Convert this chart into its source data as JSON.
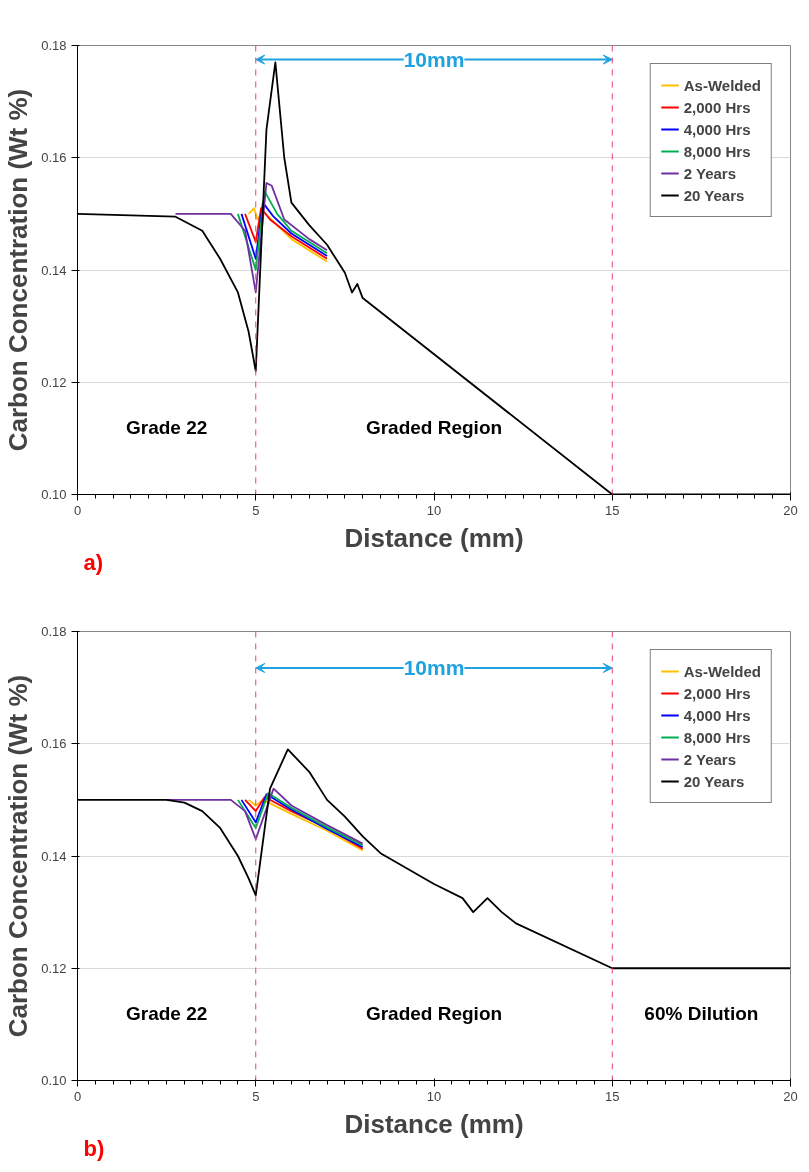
{
  "chart_data": [
    {
      "type": "line",
      "xlabel": "Distance (mm)",
      "ylabel": "Carbon Concentration (Wt %)",
      "xlim": [
        0,
        20
      ],
      "ylim": [
        0.1,
        0.18
      ],
      "xticks": [
        0,
        5,
        10,
        15,
        20
      ],
      "yticks": [
        {
          "value": 0.1,
          "label": "0.10"
        },
        {
          "value": 0.12,
          "label": "0.12"
        },
        {
          "value": 0.14,
          "label": "0.14"
        },
        {
          "value": 0.16,
          "label": "0.16"
        },
        {
          "value": 0.18,
          "label": "0.18"
        }
      ],
      "grid": "y",
      "legend": "top right",
      "marker": "none",
      "line_style": "solid",
      "ref_lines": [
        {
          "axis": "x",
          "value": 5,
          "color": "#e8436a",
          "line_style": "dashed"
        },
        {
          "axis": "x",
          "value": 15,
          "color": "#e8436a",
          "line_style": "dashed"
        }
      ],
      "annotations": [
        {
          "text": "10mm",
          "x": 5,
          "y": 0.1775
        },
        "Grade 22",
        "Graded Region",
        "a)"
      ],
      "series": [
        {
          "name": "As-Welded",
          "color": "#ffc000",
          "x": [
            4.8,
            4.95,
            5.05,
            5.2,
            6,
            7
          ],
          "values": [
            0.15,
            0.151,
            0.149,
            0.1505,
            0.1455,
            0.1415
          ]
        },
        {
          "name": "2,000 Hrs",
          "color": "#ff0000",
          "x": [
            4.7,
            5,
            5.15,
            5.4,
            6,
            7
          ],
          "values": [
            0.15,
            0.145,
            0.151,
            0.149,
            0.146,
            0.142
          ]
        },
        {
          "name": "4,000 Hrs",
          "color": "#0000ff",
          "x": [
            4.6,
            5,
            5.2,
            5.5,
            6,
            7
          ],
          "values": [
            0.15,
            0.142,
            0.152,
            0.1495,
            0.1465,
            0.1425
          ]
        },
        {
          "name": "8,000 Hrs",
          "color": "#00b050",
          "x": [
            4.5,
            5,
            5.25,
            5.6,
            6,
            7
          ],
          "values": [
            0.15,
            0.14,
            0.154,
            0.15,
            0.147,
            0.143
          ]
        },
        {
          "name": "2 Years",
          "color": "#7030a0",
          "x": [
            2.75,
            4.3,
            4.7,
            5,
            5.3,
            5.45,
            5.8,
            6.5,
            7
          ],
          "values": [
            0.15,
            0.15,
            0.147,
            0.136,
            0.1555,
            0.155,
            0.149,
            0.1455,
            0.1435
          ]
        },
        {
          "name": "20 Years",
          "color": "#000000",
          "x": [
            0,
            2.75,
            3.5,
            4,
            4.5,
            4.8,
            5,
            5.3,
            5.55,
            5.8,
            6,
            6.5,
            7,
            7.5,
            7.7,
            7.85,
            8,
            15,
            20
          ],
          "values": [
            0.15,
            0.1495,
            0.147,
            0.142,
            0.136,
            0.129,
            0.122,
            0.165,
            0.177,
            0.16,
            0.152,
            0.148,
            0.1445,
            0.1395,
            0.136,
            0.1375,
            0.135,
            0.1,
            0.1
          ]
        }
      ]
    },
    {
      "type": "line",
      "xlabel": "Distance (mm)",
      "ylabel": "Carbon Concentration (Wt %)",
      "xlim": [
        0,
        20
      ],
      "ylim": [
        0.1,
        0.18
      ],
      "xticks": [
        0,
        5,
        10,
        15,
        20
      ],
      "yticks": [
        {
          "value": 0.1,
          "label": "0.10"
        },
        {
          "value": 0.12,
          "label": "0.12"
        },
        {
          "value": 0.14,
          "label": "0.14"
        },
        {
          "value": 0.16,
          "label": "0.16"
        },
        {
          "value": 0.18,
          "label": "0.18"
        }
      ],
      "grid": "y",
      "legend": "top right",
      "marker": "none",
      "line_style": "solid",
      "ref_lines": [
        {
          "axis": "x",
          "value": 5,
          "color": "#e8436a",
          "line_style": "dashed"
        },
        {
          "axis": "x",
          "value": 15,
          "color": "#e8436a",
          "line_style": "dashed"
        }
      ],
      "annotations": [
        {
          "text": "10mm",
          "x": 5,
          "y": 0.1735
        },
        "Grade 22",
        "Graded Region",
        "60% Dilution",
        "b)"
      ],
      "series": [
        {
          "name": "As-Welded",
          "color": "#ffc000",
          "x": [
            4.8,
            5,
            5.2,
            6,
            7,
            8
          ],
          "values": [
            0.15,
            0.149,
            0.15,
            0.1475,
            0.1445,
            0.141
          ]
        },
        {
          "name": "2,000 Hrs",
          "color": "#ff0000",
          "x": [
            4.7,
            5,
            5.25,
            6,
            7,
            8
          ],
          "values": [
            0.15,
            0.148,
            0.1505,
            0.148,
            0.145,
            0.1413
          ]
        },
        {
          "name": "4,000 Hrs",
          "color": "#0000ff",
          "x": [
            4.6,
            5,
            5.3,
            6,
            7,
            8
          ],
          "values": [
            0.15,
            0.146,
            0.151,
            0.1483,
            0.1448,
            0.1416
          ]
        },
        {
          "name": "8,000 Hrs",
          "color": "#00b050",
          "x": [
            4.5,
            5,
            5.35,
            6,
            7,
            8
          ],
          "values": [
            0.15,
            0.145,
            0.1512,
            0.1486,
            0.1451,
            0.1419
          ]
        },
        {
          "name": "2 Years",
          "color": "#7030a0",
          "x": [
            2.5,
            4.3,
            4.7,
            5,
            5.5,
            6,
            7,
            8
          ],
          "values": [
            0.15,
            0.15,
            0.148,
            0.143,
            0.152,
            0.149,
            0.1455,
            0.1422
          ]
        },
        {
          "name": "20 Years",
          "color": "#000000",
          "x": [
            0,
            2.5,
            3,
            3.5,
            4,
            4.5,
            4.8,
            5,
            5.4,
            5.9,
            6.5,
            7,
            7.5,
            8,
            8.5,
            10,
            10.8,
            11.1,
            11.5,
            11.9,
            12.3,
            15,
            20
          ],
          "values": [
            0.15,
            0.15,
            0.1495,
            0.148,
            0.145,
            0.14,
            0.136,
            0.133,
            0.152,
            0.159,
            0.155,
            0.15,
            0.147,
            0.1435,
            0.1405,
            0.135,
            0.1325,
            0.13,
            0.1325,
            0.13,
            0.128,
            0.12,
            0.12
          ]
        }
      ]
    }
  ]
}
